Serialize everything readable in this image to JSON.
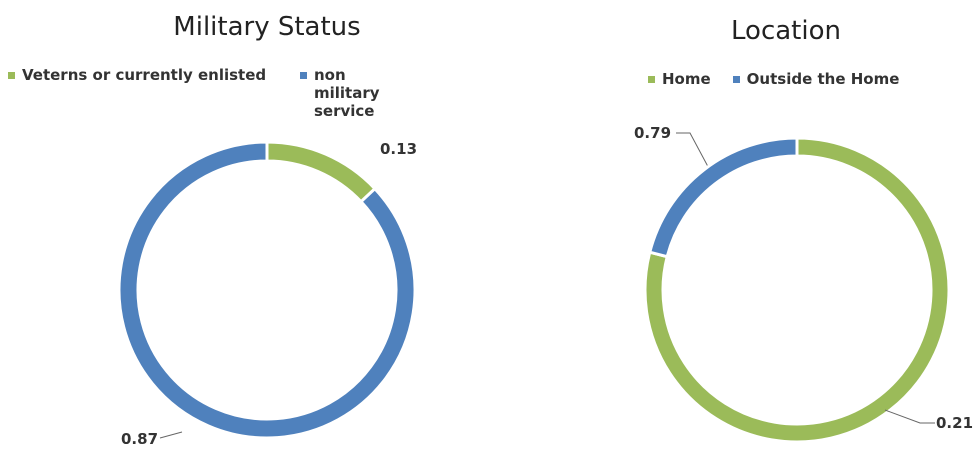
{
  "chart_data": [
    {
      "type": "donut",
      "title": "Military Status",
      "categories": [
        "Veterns or currently enlisted",
        "non military service"
      ],
      "values": [
        0.13,
        0.87
      ],
      "colors": [
        "#9bbb59",
        "#4f81bd"
      ]
    },
    {
      "type": "donut",
      "title": "Location",
      "categories": [
        "Home",
        "Outside the Home"
      ],
      "values": [
        0.79,
        0.21
      ],
      "colors": [
        "#9bbb59",
        "#4f81bd"
      ]
    }
  ]
}
